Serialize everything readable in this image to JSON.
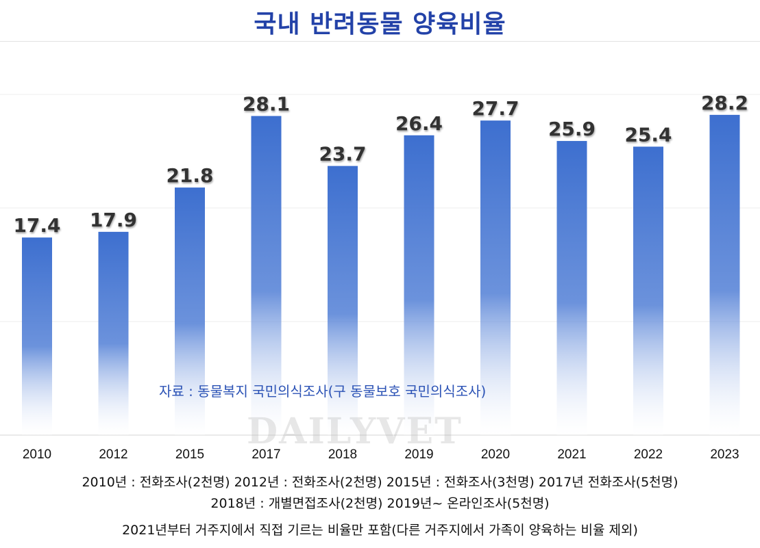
{
  "title": "국내 반려동물 양육비율",
  "source": "자료 : 동물복지 국민의식조사(구 동물보호 국민의식조사)",
  "watermark": "DAILYVET",
  "notes": [
    "2010년 : 전화조사(2천명)  2012년 : 전화조사(2천명)  2015년 : 전화조사(3천명)  2017년 전화조사(5천명)",
    "2018년 : 개별면접조사(2천명)  2019년~ 온라인조사(5천명)",
    "2021년부터 거주지에서 직접 기르는 비율만 포함(다른 거주지에서 가족이 양육하는 비율 제외)"
  ],
  "colors": {
    "title": "#2342a8",
    "bar": "#3d6fcf",
    "source": "#2b52b5"
  },
  "chart_data": {
    "type": "bar",
    "title": "국내 반려동물 양육비율",
    "categories": [
      "2010",
      "2012",
      "2015",
      "2017",
      "2018",
      "2019",
      "2020",
      "2021",
      "2022",
      "2023"
    ],
    "values": [
      17.4,
      17.9,
      21.8,
      28.1,
      23.7,
      26.4,
      27.7,
      25.9,
      25.4,
      28.2
    ],
    "data_labels": [
      "17.4",
      "17.9",
      "21.8",
      "28.1",
      "23.7",
      "26.4",
      "27.7",
      "25.9",
      "25.4",
      "28.2"
    ],
    "xlabel": "",
    "ylabel": "",
    "ylim": [
      0,
      40
    ],
    "grid": true,
    "legend": "none"
  }
}
